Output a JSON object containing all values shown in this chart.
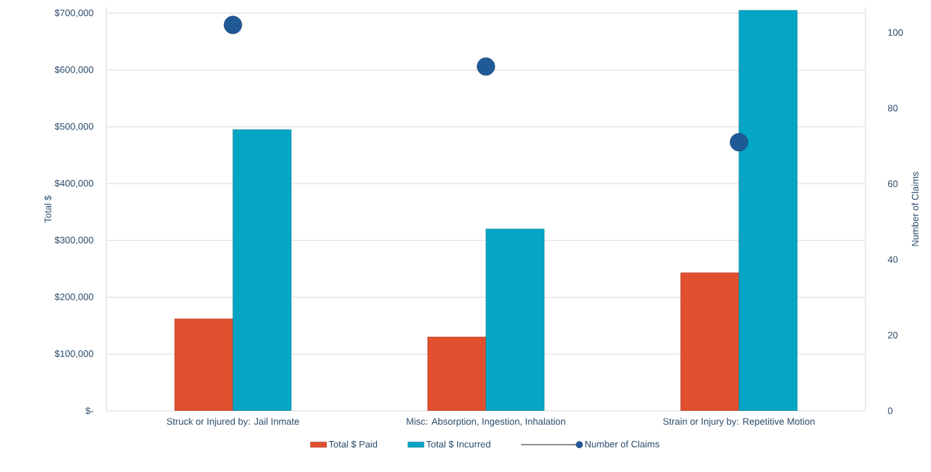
{
  "chart_data": {
    "type": "bar",
    "ylabel": "Total $",
    "y2label": "Number of Claims",
    "categories": [
      "Struck or Injured by: Jail Inmate",
      "Misc: Absorption, Ingestion, Inhalation",
      "Strain or Injury by: Repetitive Motion"
    ],
    "series": [
      {
        "name": "Total $ Paid",
        "color": "#e0502f",
        "values": [
          162000,
          130000,
          243000
        ]
      },
      {
        "name": "Total $ Incurred",
        "color": "#05a5c5",
        "values": [
          495000,
          320000,
          705000
        ]
      },
      {
        "name": "Number of Claims",
        "type": "scatter",
        "axis": "y2",
        "color": "#1f5a96",
        "marker": "circle",
        "values": [
          102,
          91,
          71
        ]
      }
    ],
    "ylim": [
      0,
      710000
    ],
    "yticks": [
      {
        "value": 0,
        "label": "$-"
      },
      {
        "value": 100000,
        "label": "$100,000"
      },
      {
        "value": 200000,
        "label": "$200,000"
      },
      {
        "value": 300000,
        "label": "$300,000"
      },
      {
        "value": 400000,
        "label": "$400,000"
      },
      {
        "value": 500000,
        "label": "$500,000"
      },
      {
        "value": 600000,
        "label": "$600,000"
      },
      {
        "value": 700000,
        "label": "$700,000"
      }
    ],
    "y2lim": [
      0,
      106.6
    ],
    "y2ticks": [
      0,
      20,
      40,
      60,
      80,
      100
    ],
    "grid": "y",
    "legend": "bottom"
  }
}
